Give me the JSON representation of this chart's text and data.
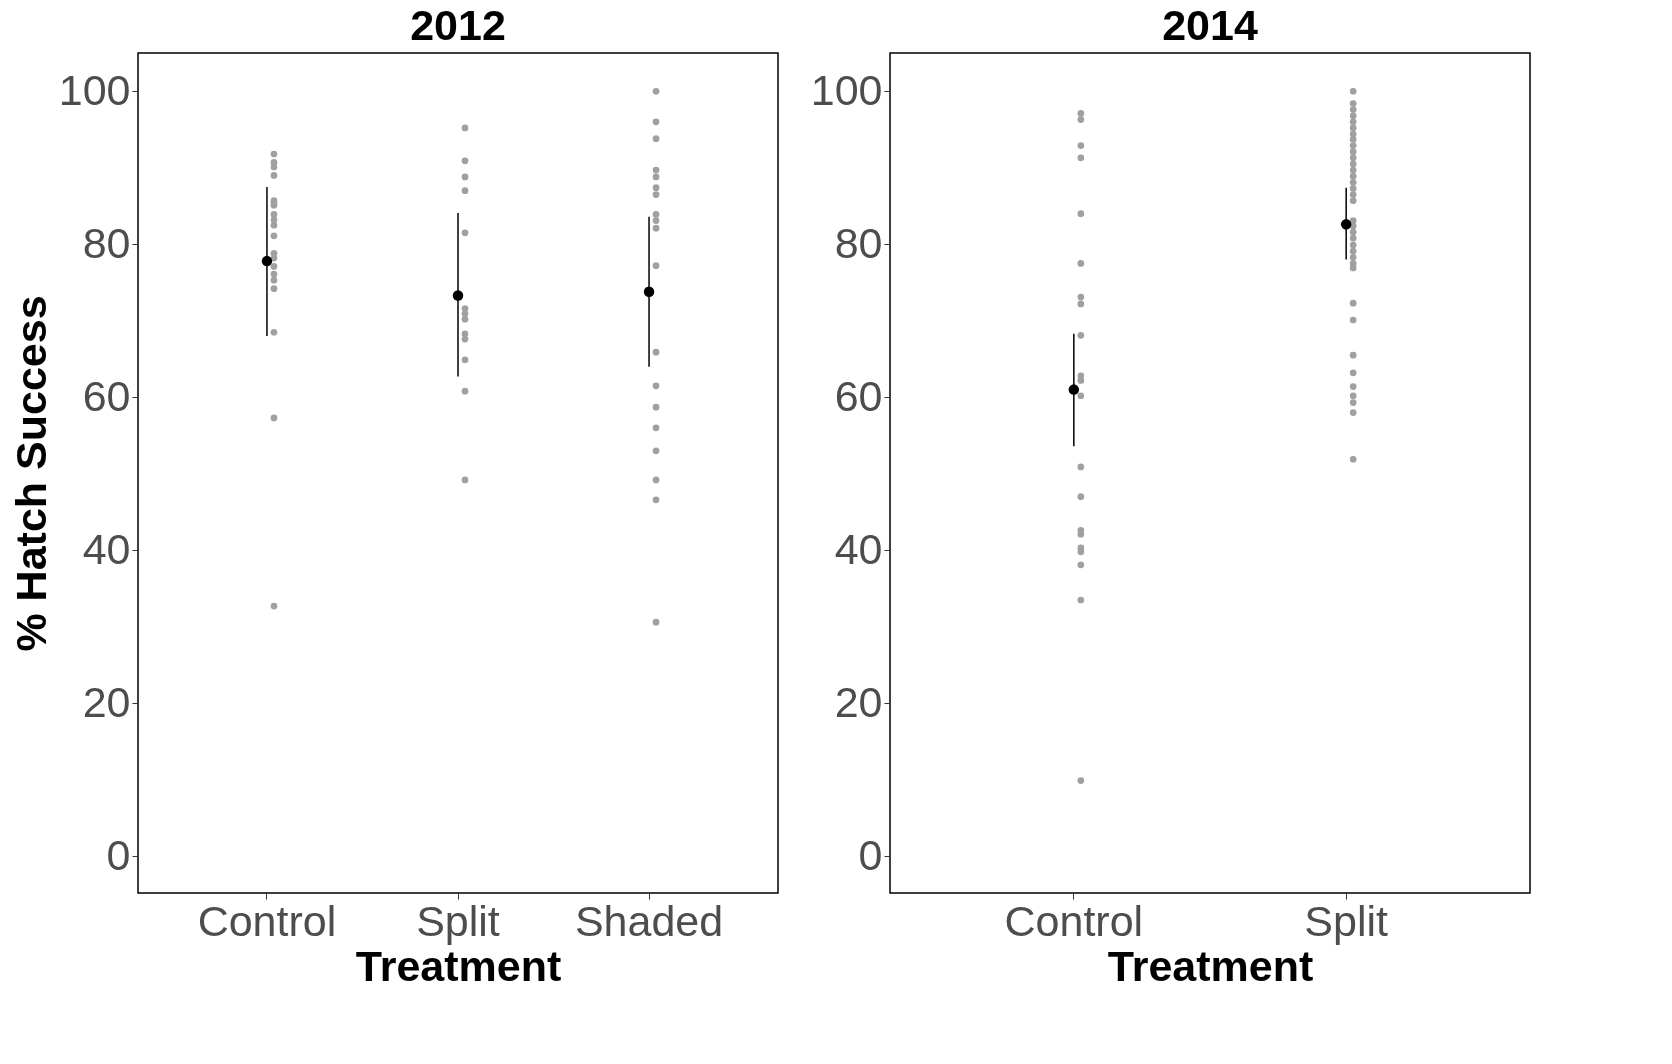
{
  "chart_data": [
    {
      "type": "scatter",
      "title": "2012",
      "xlabel": "Treatment",
      "ylabel": "% Hatch Success",
      "categories": [
        "Control",
        "Split",
        "Shaded"
      ],
      "ylim": [
        -4.8,
        105
      ],
      "yticks": [
        0,
        20,
        40,
        60,
        80,
        100
      ],
      "grid": false,
      "legend": false,
      "marker": "circle",
      "series": [
        {
          "color": "#a0a0a0",
          "x": [
            "Control",
            "Control",
            "Control",
            "Control",
            "Control",
            "Control",
            "Control",
            "Control",
            "Control",
            "Control",
            "Control",
            "Control",
            "Control",
            "Control",
            "Control",
            "Control",
            "Control",
            "Control",
            "Control",
            "Control",
            "Split",
            "Split",
            "Split",
            "Split",
            "Split",
            "Split",
            "Split",
            "Split",
            "Split",
            "Split",
            "Split",
            "Split",
            "Split",
            "Shaded",
            "Shaded",
            "Shaded",
            "Shaded",
            "Shaded",
            "Shaded",
            "Shaded",
            "Shaded",
            "Shaded",
            "Shaded",
            "Shaded",
            "Shaded",
            "Shaded",
            "Shaded",
            "Shaded",
            "Shaded",
            "Shaded",
            "Shaded",
            "Shaded"
          ],
          "values": [
            91.8,
            90.7,
            90.1,
            89.0,
            85.7,
            85.4,
            85.1,
            83.9,
            83.2,
            82.5,
            81.1,
            78.8,
            78.2,
            77.1,
            76.1,
            75.3,
            74.2,
            68.5,
            57.3,
            32.7,
            95.2,
            90.9,
            88.8,
            87.0,
            81.5,
            71.6,
            70.9,
            70.2,
            68.3,
            67.6,
            64.9,
            60.8,
            49.2,
            100,
            96.0,
            93.8,
            89.7,
            88.8,
            87.4,
            86.5,
            83.9,
            83.1,
            82.1,
            77.2,
            65.9,
            61.5,
            58.7,
            56.0,
            53.0,
            49.2,
            46.6,
            30.6
          ]
        },
        {
          "color": "#000000",
          "values": [
            77.8,
            73.3,
            73.8
          ],
          "errors": [
            [
              68.0,
              87.5
            ],
            [
              62.7,
              84.1
            ],
            [
              64.0,
              83.6
            ]
          ]
        }
      ]
    },
    {
      "type": "scatter",
      "title": "2014",
      "xlabel": "Treatment",
      "categories": [
        "Control",
        "Split"
      ],
      "ylim": [
        -4.8,
        105
      ],
      "yticks": [
        0,
        20,
        40,
        60,
        80,
        100
      ],
      "grid": false,
      "legend": false,
      "marker": "circle",
      "series": [
        {
          "color": "#a0a0a0",
          "x": [
            "Control",
            "Control",
            "Control",
            "Control",
            "Control",
            "Control",
            "Control",
            "Control",
            "Control",
            "Control",
            "Control",
            "Control",
            "Control",
            "Control",
            "Control",
            "Control",
            "Control",
            "Control",
            "Control",
            "Control",
            "Control",
            "Split",
            "Split",
            "Split",
            "Split",
            "Split",
            "Split",
            "Split",
            "Split",
            "Split",
            "Split",
            "Split",
            "Split",
            "Split",
            "Split",
            "Split",
            "Split",
            "Split",
            "Split",
            "Split",
            "Split",
            "Split",
            "Split",
            "Split",
            "Split",
            "Split",
            "Split",
            "Split",
            "Split",
            "Split",
            "Split",
            "Split",
            "Split",
            "Split",
            "Split",
            "Split",
            "Split"
          ],
          "values": [
            97.1,
            96.3,
            92.9,
            91.3,
            84.0,
            77.5,
            73.1,
            72.2,
            68.1,
            62.8,
            62.2,
            60.2,
            50.9,
            47.0,
            42.6,
            42.1,
            40.3,
            39.8,
            38.1,
            33.5,
            9.9,
            100,
            98.4,
            97.6,
            96.8,
            96.0,
            95.2,
            94.4,
            93.7,
            92.9,
            92.1,
            91.3,
            90.5,
            89.7,
            88.9,
            88.1,
            87.3,
            86.5,
            85.7,
            83.1,
            82.4,
            81.6,
            80.8,
            79.9,
            79.1,
            78.3,
            77.5,
            76.9,
            72.3,
            70.1,
            65.5,
            63.2,
            61.4,
            60.2,
            59.3,
            58.0,
            51.9
          ]
        },
        {
          "color": "#000000",
          "values": [
            61.0,
            82.6
          ],
          "errors": [
            [
              53.6,
              68.3
            ],
            [
              78.0,
              87.4
            ]
          ]
        }
      ]
    }
  ]
}
